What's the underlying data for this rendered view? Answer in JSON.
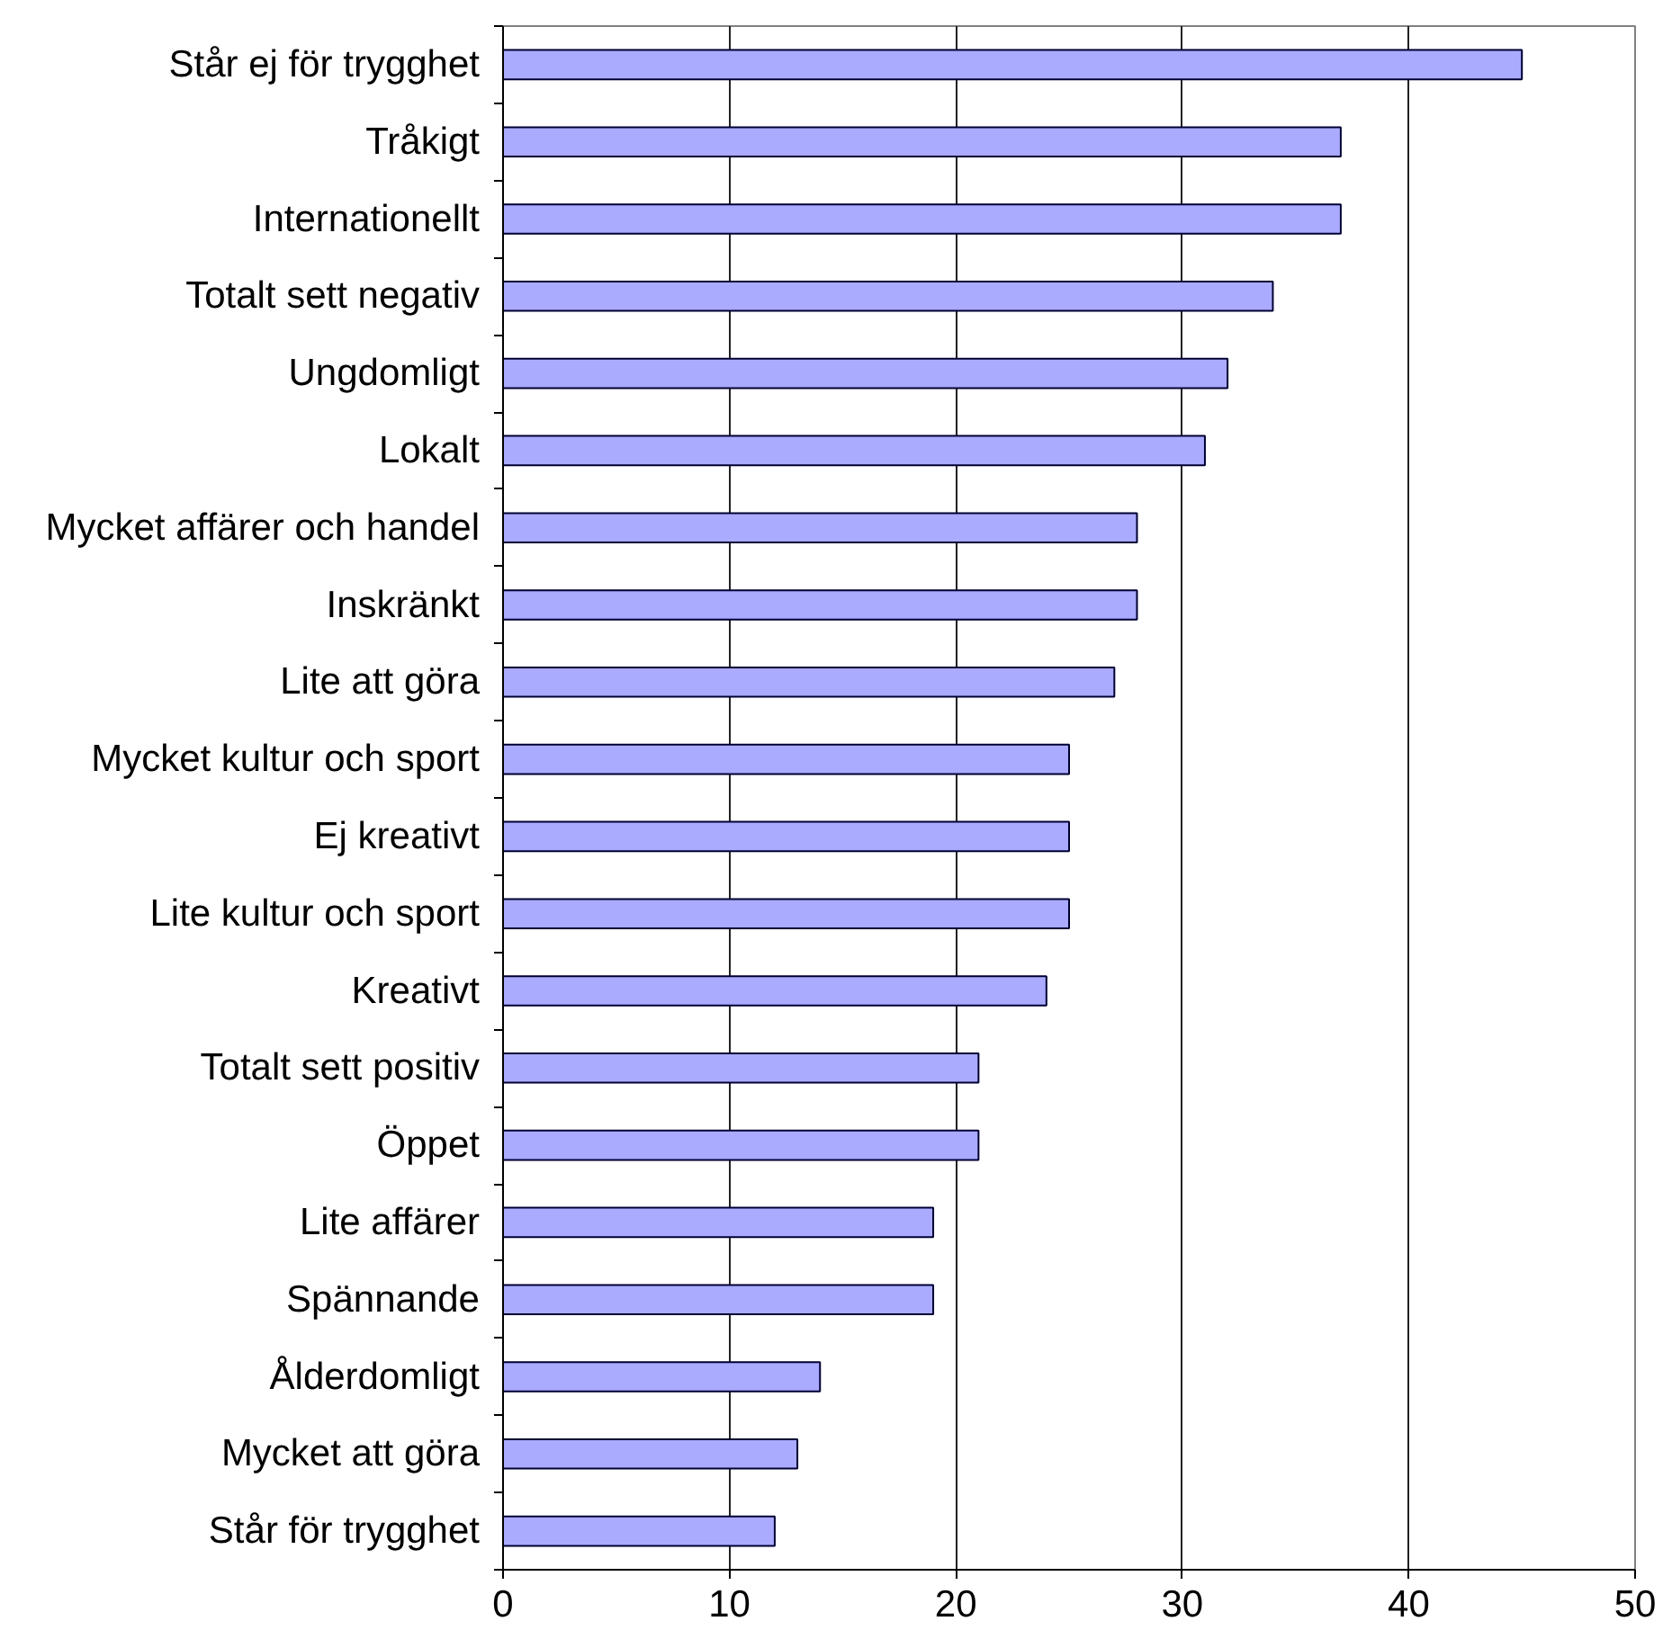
{
  "chart_data": {
    "type": "bar",
    "orientation": "horizontal",
    "categories": [
      "Står ej för trygghet",
      "Tråkigt",
      "Internationellt",
      "Totalt sett negativ",
      "Ungdomligt",
      "Lokalt",
      "Mycket affärer och handel",
      "Inskränkt",
      "Lite att göra",
      "Mycket kultur och sport",
      "Ej kreativt",
      "Lite kultur och sport",
      "Kreativt",
      "Totalt sett positiv",
      "Öppet",
      "Lite affärer",
      "Spännande",
      "Ålderdomligt",
      "Mycket att göra",
      "Står för trygghet"
    ],
    "values": [
      45,
      37,
      37,
      34,
      32,
      31,
      28,
      28,
      27,
      25,
      25,
      25,
      24,
      21,
      21,
      19,
      19,
      14,
      13,
      12
    ],
    "color": "#aaaaff",
    "xlim": [
      0,
      50
    ],
    "xticks": [
      0,
      10,
      20,
      30,
      40,
      50
    ],
    "grid": "x"
  }
}
